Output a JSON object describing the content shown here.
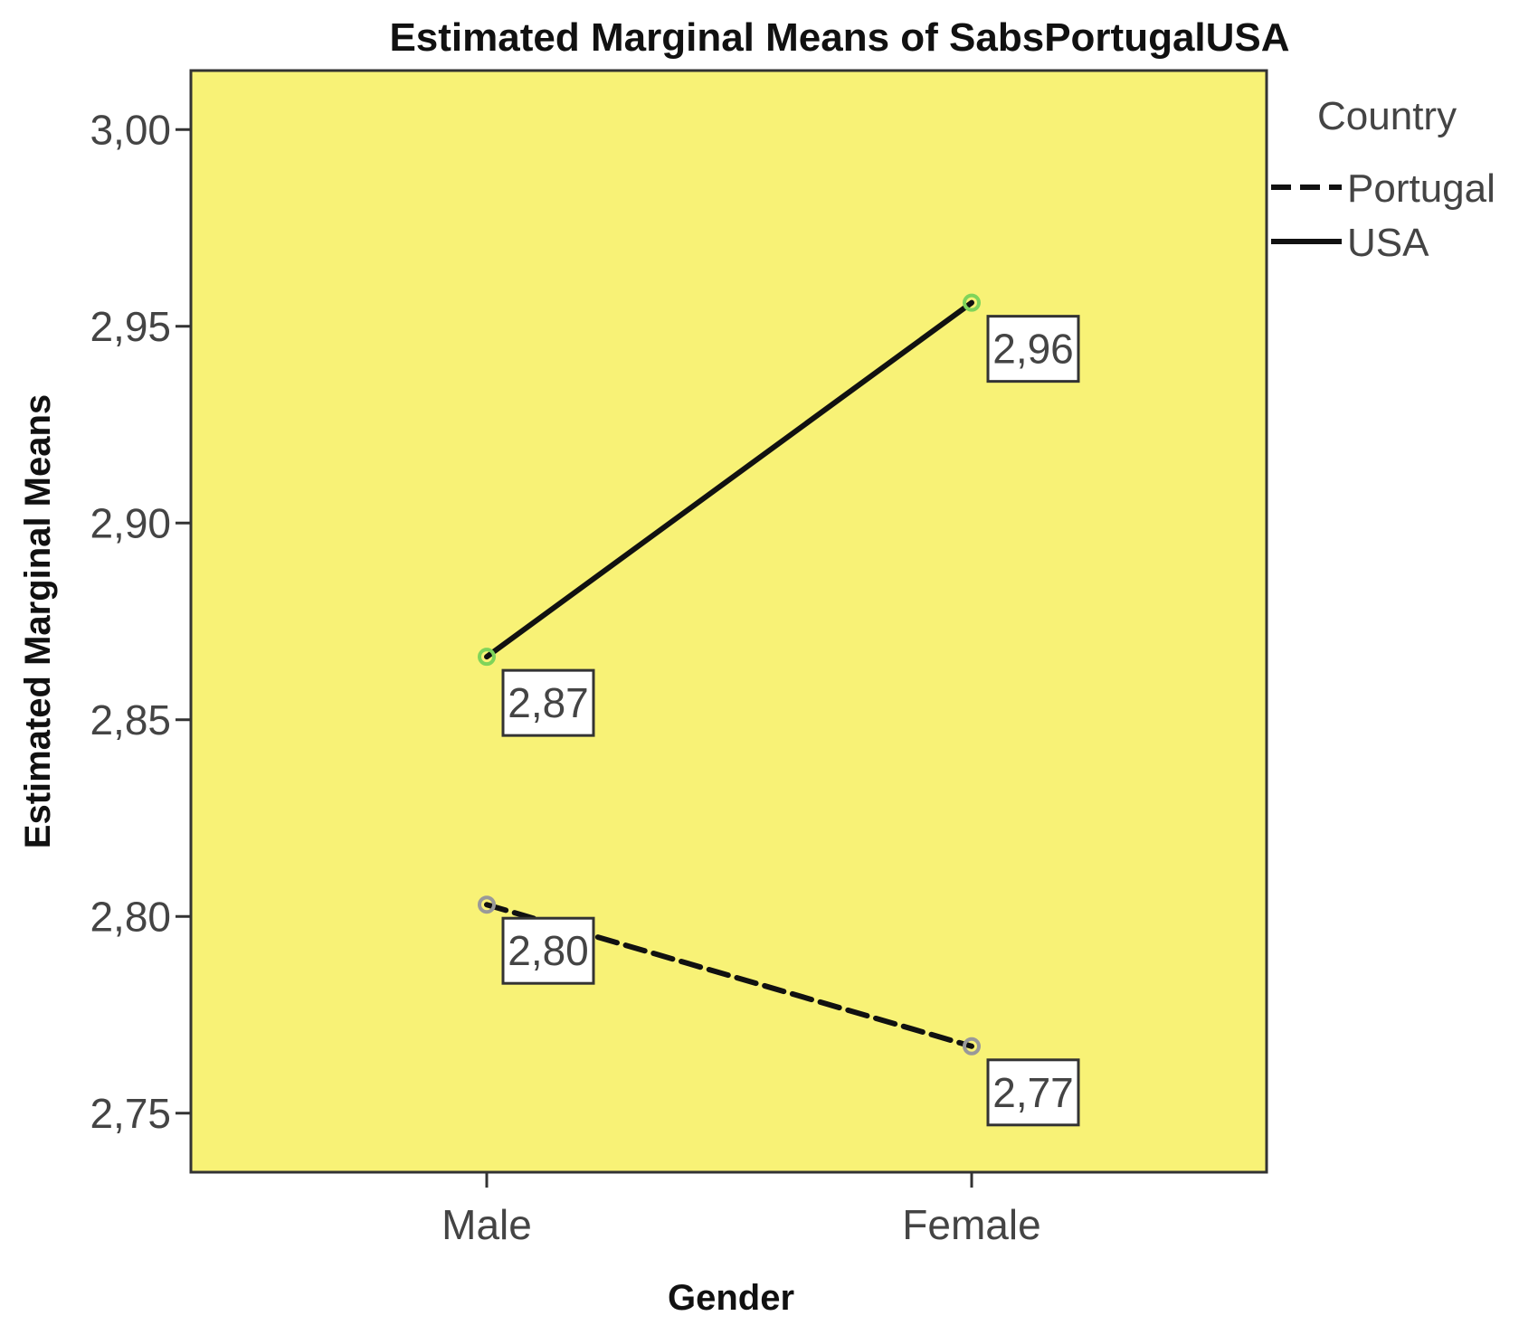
{
  "colors": {
    "plot_background": "#f8f276",
    "frame": "#333333",
    "line": "#111111",
    "usa_marker": "#7fd45a",
    "portugal_marker": "#999999"
  },
  "chart_data": {
    "type": "line",
    "title": "Estimated Marginal Means of SabsPortugalUSA",
    "xlabel": "Gender",
    "ylabel": "Estimated Marginal Means",
    "categories": [
      "Male",
      "Female"
    ],
    "ylim": [
      2.735,
      3.015
    ],
    "yticks": [
      2.75,
      2.8,
      2.85,
      2.9,
      2.95,
      3.0
    ],
    "ytick_labels": [
      "2,75",
      "2,80",
      "2,85",
      "2,90",
      "2,95",
      "3,00"
    ],
    "legend_title": "Country",
    "legend_position": "right",
    "grid": false,
    "series": [
      {
        "name": "Portugal",
        "style": "dashed",
        "values": [
          2.803,
          2.767
        ],
        "labels": [
          "2,80",
          "2,77"
        ]
      },
      {
        "name": "USA",
        "style": "solid",
        "values": [
          2.866,
          2.956
        ],
        "labels": [
          "2,87",
          "2,96"
        ]
      }
    ]
  }
}
